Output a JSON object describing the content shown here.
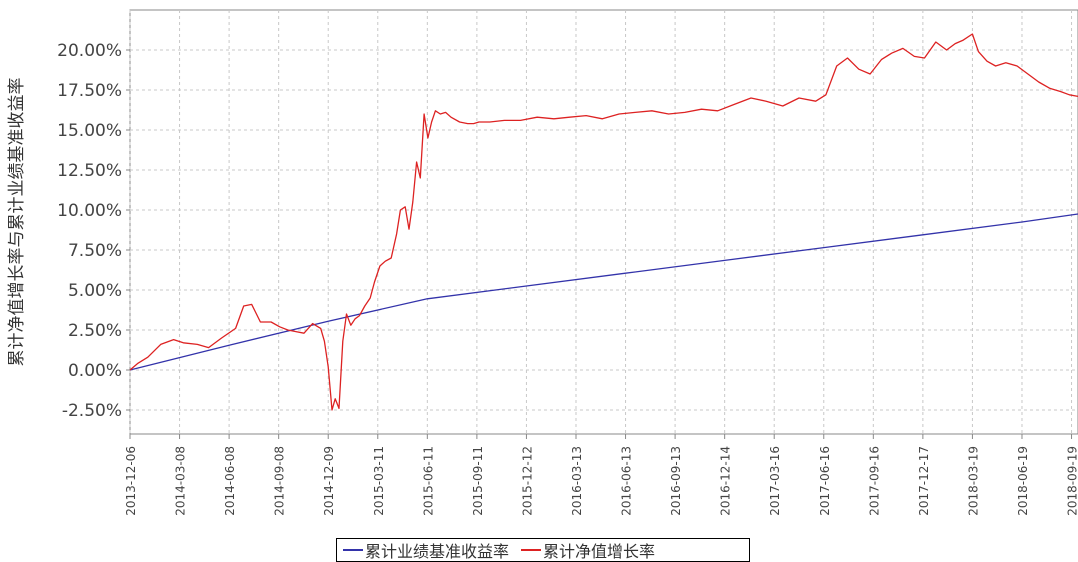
{
  "chart_data": {
    "type": "line",
    "ylabel": "累计净值增长率与累计业绩基准收益率",
    "ylim": [
      -0.04,
      0.225
    ],
    "yticks": [
      "20.00%",
      "17.50%",
      "15.00%",
      "12.50%",
      "10.00%",
      "7.50%",
      "5.00%",
      "2.50%",
      "0.00%",
      "-2.50%"
    ],
    "ytick_values": [
      0.2,
      0.175,
      0.15,
      0.125,
      0.1,
      0.075,
      0.05,
      0.025,
      0.0,
      -0.025
    ],
    "xlim": [
      "2013-12-06",
      "2018-10-01"
    ],
    "xticks": [
      "2013-12-06",
      "2014-03-08",
      "2014-06-08",
      "2014-09-08",
      "2014-12-09",
      "2015-03-11",
      "2015-06-11",
      "2015-09-11",
      "2015-12-12",
      "2016-03-13",
      "2016-06-13",
      "2016-09-13",
      "2016-12-14",
      "2017-03-16",
      "2017-06-16",
      "2017-09-16",
      "2017-12-17",
      "2018-03-19",
      "2018-06-19",
      "2018-09-19"
    ],
    "grid": true,
    "legend_position": "bottom",
    "series": [
      {
        "name": "累计业绩基准收益率",
        "color": "#3333aa",
        "x": [
          "2013-12-06",
          "2014-06-08",
          "2014-12-09",
          "2015-06-11",
          "2015-12-12",
          "2016-06-13",
          "2016-12-14",
          "2017-06-16",
          "2017-12-17",
          "2018-06-19",
          "2018-10-01"
        ],
        "y": [
          0.0,
          0.0155,
          0.0305,
          0.0445,
          0.0525,
          0.0605,
          0.0685,
          0.0765,
          0.0845,
          0.0925,
          0.0975
        ]
      },
      {
        "name": "累计净值增长率",
        "color": "#dd2222",
        "x": [
          "2013-12-06",
          "2013-12-20",
          "2014-01-08",
          "2014-02-01",
          "2014-02-25",
          "2014-03-15",
          "2014-04-10",
          "2014-05-01",
          "2014-05-25",
          "2014-06-20",
          "2014-07-05",
          "2014-07-20",
          "2014-08-05",
          "2014-08-25",
          "2014-09-10",
          "2014-09-25",
          "2014-10-10",
          "2014-10-25",
          "2014-11-10",
          "2014-11-25",
          "2014-12-02",
          "2014-12-09",
          "2014-12-16",
          "2014-12-22",
          "2014-12-29",
          "2015-01-05",
          "2015-01-12",
          "2015-01-20",
          "2015-01-28",
          "2015-02-05",
          "2015-02-15",
          "2015-02-25",
          "2015-03-05",
          "2015-03-15",
          "2015-03-25",
          "2015-04-05",
          "2015-04-15",
          "2015-04-22",
          "2015-05-01",
          "2015-05-08",
          "2015-05-15",
          "2015-05-22",
          "2015-05-29",
          "2015-06-05",
          "2015-06-12",
          "2015-06-19",
          "2015-06-26",
          "2015-07-05",
          "2015-07-15",
          "2015-07-25",
          "2015-08-10",
          "2015-08-25",
          "2015-09-05",
          "2015-09-15",
          "2015-10-05",
          "2015-11-01",
          "2015-12-01",
          "2016-01-01",
          "2016-02-01",
          "2016-03-01",
          "2016-04-01",
          "2016-05-01",
          "2016-06-01",
          "2016-07-01",
          "2016-08-01",
          "2016-09-01",
          "2016-10-01",
          "2016-11-01",
          "2016-12-01",
          "2017-01-01",
          "2017-02-01",
          "2017-03-01",
          "2017-04-01",
          "2017-05-01",
          "2017-06-01",
          "2017-06-20",
          "2017-07-10",
          "2017-07-30",
          "2017-08-20",
          "2017-09-10",
          "2017-10-01",
          "2017-10-20",
          "2017-11-10",
          "2017-12-01",
          "2017-12-20",
          "2018-01-10",
          "2018-01-30",
          "2018-02-15",
          "2018-03-01",
          "2018-03-19",
          "2018-03-30",
          "2018-04-15",
          "2018-05-01",
          "2018-05-20",
          "2018-06-10",
          "2018-06-30",
          "2018-07-20",
          "2018-08-10",
          "2018-08-30",
          "2018-09-15",
          "2018-10-01"
        ],
        "y": [
          0.0,
          0.004,
          0.008,
          0.016,
          0.019,
          0.017,
          0.016,
          0.014,
          0.02,
          0.026,
          0.04,
          0.041,
          0.03,
          0.03,
          0.027,
          0.025,
          0.024,
          0.023,
          0.029,
          0.026,
          0.018,
          0.002,
          -0.025,
          -0.018,
          -0.024,
          0.018,
          0.035,
          0.028,
          0.032,
          0.034,
          0.04,
          0.045,
          0.055,
          0.065,
          0.068,
          0.07,
          0.085,
          0.1,
          0.102,
          0.088,
          0.105,
          0.13,
          0.12,
          0.16,
          0.145,
          0.155,
          0.162,
          0.16,
          0.161,
          0.158,
          0.155,
          0.154,
          0.154,
          0.155,
          0.155,
          0.156,
          0.156,
          0.158,
          0.157,
          0.158,
          0.159,
          0.157,
          0.16,
          0.161,
          0.162,
          0.16,
          0.161,
          0.163,
          0.162,
          0.166,
          0.17,
          0.168,
          0.165,
          0.17,
          0.168,
          0.172,
          0.19,
          0.195,
          0.188,
          0.185,
          0.194,
          0.198,
          0.201,
          0.196,
          0.195,
          0.205,
          0.2,
          0.204,
          0.206,
          0.21,
          0.199,
          0.193,
          0.19,
          0.192,
          0.19,
          0.185,
          0.18,
          0.176,
          0.174,
          0.172,
          0.171
        ]
      }
    ]
  }
}
